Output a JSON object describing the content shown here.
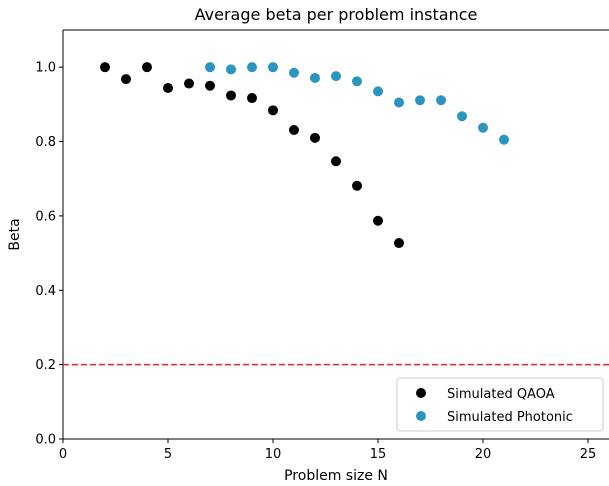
{
  "chart_data": {
    "type": "scatter",
    "title": "Average beta per problem instance",
    "xlabel": "Problem size N",
    "ylabel": "Beta",
    "xlim": [
      0,
      26
    ],
    "ylim": [
      0,
      1.1
    ],
    "x_ticks": [
      0,
      5,
      10,
      15,
      20,
      25
    ],
    "y_ticks": [
      0.0,
      0.2,
      0.4,
      0.6,
      0.8,
      1.0
    ],
    "grid": false,
    "legend_position": "lower right",
    "series": [
      {
        "name": "Simulated QAOA",
        "color": "#000000",
        "x": [
          2,
          3,
          4,
          5,
          6,
          7,
          8,
          9,
          10,
          11,
          12,
          13,
          14,
          15,
          16
        ],
        "y": [
          1.0,
          0.968,
          1.0,
          0.944,
          0.956,
          0.95,
          0.924,
          0.917,
          0.884,
          0.831,
          0.81,
          0.747,
          0.681,
          0.587,
          0.527
        ]
      },
      {
        "name": "Simulated Photonic",
        "color": "#2b95bf",
        "x": [
          7,
          8,
          9,
          10,
          11,
          12,
          13,
          14,
          15,
          16,
          17,
          18,
          19,
          20,
          21
        ],
        "y": [
          1.0,
          0.994,
          1.0,
          1.0,
          0.985,
          0.971,
          0.976,
          0.962,
          0.935,
          0.905,
          0.911,
          0.911,
          0.868,
          0.837,
          0.805
        ]
      }
    ],
    "reference_line": {
      "y": 0.2,
      "color": "#e3282a",
      "style": "dashed"
    }
  }
}
